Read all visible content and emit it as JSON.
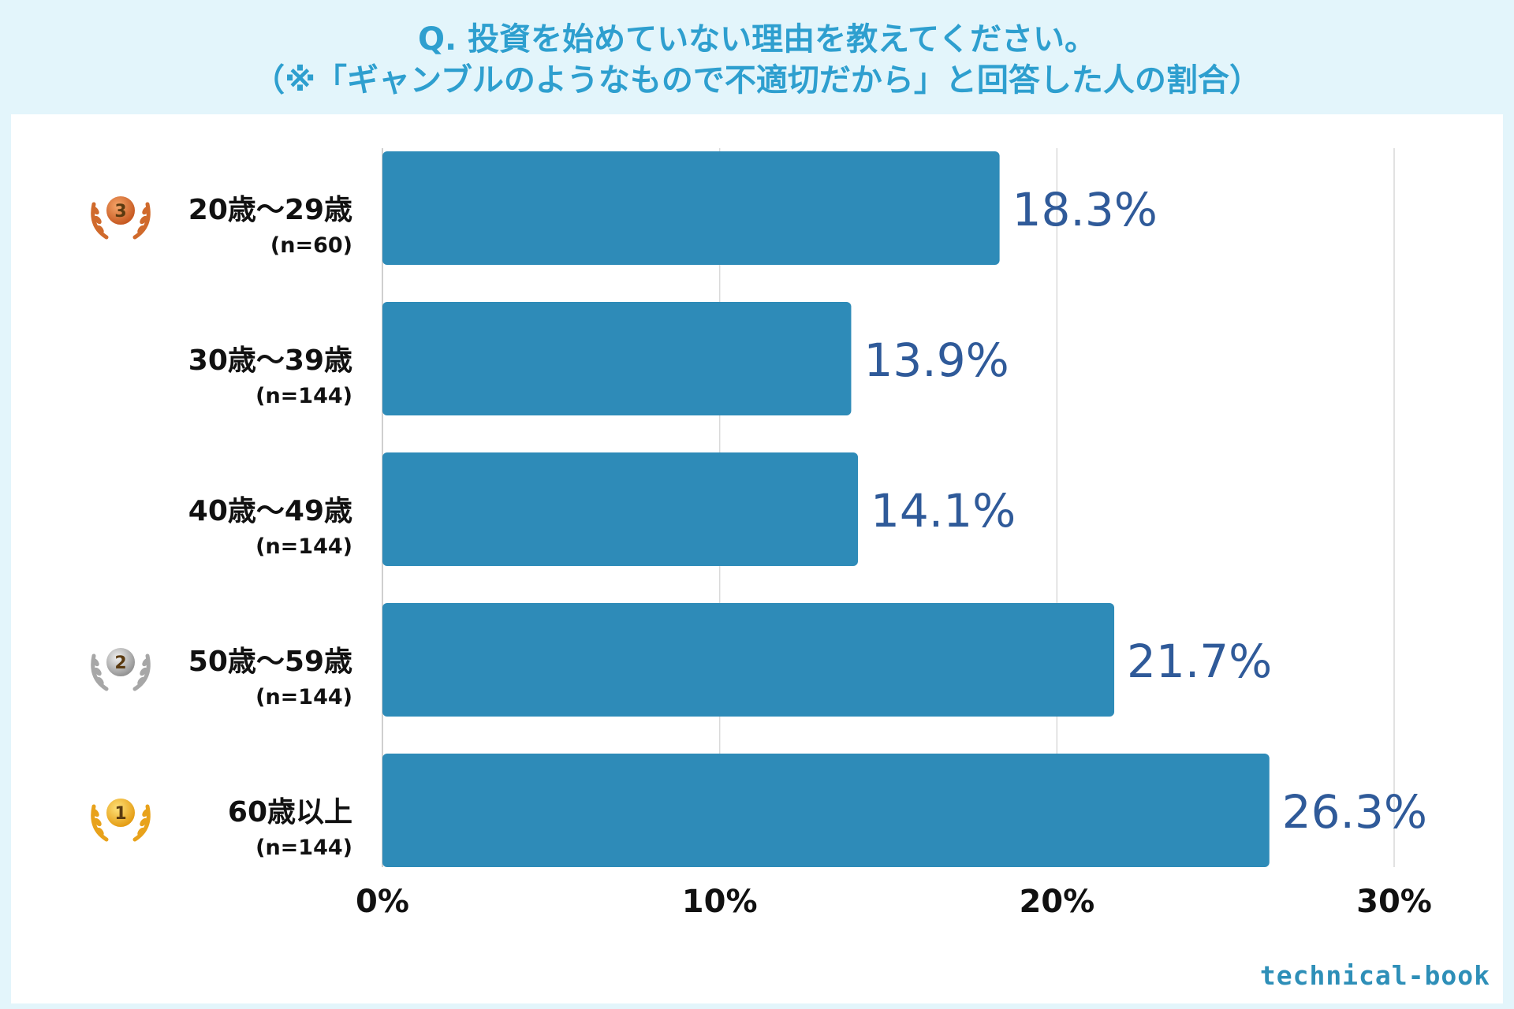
{
  "title": {
    "line1": "Q. 投資を始めていない理由を教えてください。",
    "line2": "（※「ギャンブルのようなもので不適切だから」と回答した人の割合）"
  },
  "brand": "technical-book",
  "colors": {
    "bar": "#2e8bb8",
    "value_label": "#2f5a99",
    "title": "#2e9fcf",
    "grid": "#d9d9d9"
  },
  "chart_data": {
    "type": "bar",
    "orientation": "horizontal",
    "categories": [
      "20歳〜29歳",
      "30歳〜39歳",
      "40歳〜49歳",
      "50歳〜59歳",
      "60歳以上"
    ],
    "sample_sizes": [
      "(n=60)",
      "(n=144)",
      "(n=144)",
      "(n=144)",
      "(n=144)"
    ],
    "values": [
      18.3,
      13.9,
      14.1,
      21.7,
      26.3
    ],
    "value_labels": [
      "18.3%",
      "13.9%",
      "14.1%",
      "21.7%",
      "26.3%"
    ],
    "ranks": [
      3,
      null,
      null,
      2,
      1
    ],
    "rank_icons": [
      "bronze-medal-icon",
      null,
      null,
      "silver-medal-icon",
      "gold-medal-icon"
    ],
    "xlim": [
      0,
      30
    ],
    "x_ticks": [
      0,
      10,
      20,
      30
    ],
    "x_tick_labels": [
      "0%",
      "10%",
      "20%",
      "30%"
    ],
    "grid": true
  }
}
